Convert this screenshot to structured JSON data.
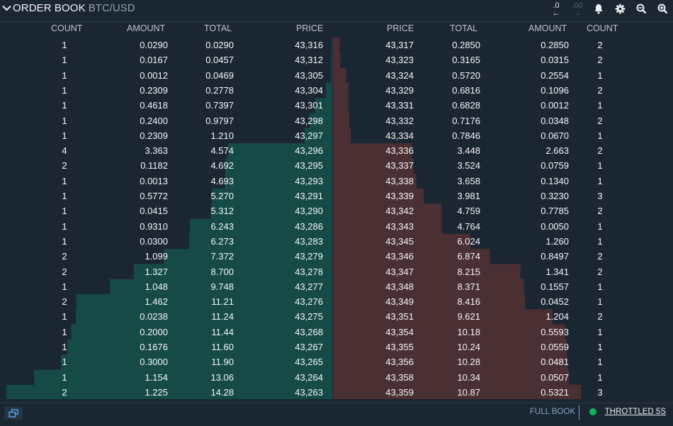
{
  "header": {
    "title": "ORDER BOOK",
    "pair": "BTC/USD",
    "prec_less_label": ".0",
    "prec_more_label": ".00",
    "prec_less_arrow": "←",
    "prec_more_arrow": "→"
  },
  "columns": {
    "bid_count": "COUNT",
    "bid_amount": "AMOUNT",
    "bid_total": "TOTAL",
    "bid_price": "PRICE",
    "ask_price": "PRICE",
    "ask_total": "TOTAL",
    "ask_amount": "AMOUNT",
    "ask_count": "COUNT"
  },
  "bids": [
    {
      "count": "1",
      "amount": "0.0290",
      "total": "0.0290",
      "price": "43,316"
    },
    {
      "count": "1",
      "amount": "0.0167",
      "total": "0.0457",
      "price": "43,312"
    },
    {
      "count": "1",
      "amount": "0.0012",
      "total": "0.0469",
      "price": "43,305"
    },
    {
      "count": "1",
      "amount": "0.2309",
      "total": "0.2778",
      "price": "43,304"
    },
    {
      "count": "1",
      "amount": "0.4618",
      "total": "0.7397",
      "price": "43,301"
    },
    {
      "count": "1",
      "amount": "0.2400",
      "total": "0.9797",
      "price": "43,298"
    },
    {
      "count": "1",
      "amount": "0.2309",
      "total": "1.210",
      "price": "43,297"
    },
    {
      "count": "4",
      "amount": "3.363",
      "total": "4.574",
      "price": "43,296"
    },
    {
      "count": "2",
      "amount": "0.1182",
      "total": "4.692",
      "price": "43,295"
    },
    {
      "count": "1",
      "amount": "0.0013",
      "total": "4.693",
      "price": "43,293"
    },
    {
      "count": "1",
      "amount": "0.5772",
      "total": "5.270",
      "price": "43,291"
    },
    {
      "count": "1",
      "amount": "0.0415",
      "total": "5.312",
      "price": "43,290"
    },
    {
      "count": "1",
      "amount": "0.9310",
      "total": "6.243",
      "price": "43,286"
    },
    {
      "count": "1",
      "amount": "0.0300",
      "total": "6.273",
      "price": "43,283"
    },
    {
      "count": "2",
      "amount": "1.099",
      "total": "7.372",
      "price": "43,279"
    },
    {
      "count": "2",
      "amount": "1.327",
      "total": "8.700",
      "price": "43,278"
    },
    {
      "count": "1",
      "amount": "1.048",
      "total": "9.748",
      "price": "43,277"
    },
    {
      "count": "2",
      "amount": "1.462",
      "total": "11.21",
      "price": "43,276"
    },
    {
      "count": "1",
      "amount": "0.0238",
      "total": "11.24",
      "price": "43,275"
    },
    {
      "count": "1",
      "amount": "0.2000",
      "total": "11.44",
      "price": "43,268"
    },
    {
      "count": "1",
      "amount": "0.1676",
      "total": "11.60",
      "price": "43,267"
    },
    {
      "count": "1",
      "amount": "0.3000",
      "total": "11.90",
      "price": "43,265"
    },
    {
      "count": "1",
      "amount": "1.154",
      "total": "13.06",
      "price": "43,264"
    },
    {
      "count": "2",
      "amount": "1.225",
      "total": "14.28",
      "price": "43,263"
    }
  ],
  "asks": [
    {
      "price": "43,317",
      "total": "0.2850",
      "amount": "0.2850",
      "count": "2"
    },
    {
      "price": "43,323",
      "total": "0.3165",
      "amount": "0.0315",
      "count": "2"
    },
    {
      "price": "43,324",
      "total": "0.5720",
      "amount": "0.2554",
      "count": "1"
    },
    {
      "price": "43,329",
      "total": "0.6816",
      "amount": "0.1096",
      "count": "2"
    },
    {
      "price": "43,331",
      "total": "0.6828",
      "amount": "0.0012",
      "count": "1"
    },
    {
      "price": "43,332",
      "total": "0.7176",
      "amount": "0.0348",
      "count": "2"
    },
    {
      "price": "43,334",
      "total": "0.7846",
      "amount": "0.0670",
      "count": "1"
    },
    {
      "price": "43,336",
      "total": "3.448",
      "amount": "2.663",
      "count": "2"
    },
    {
      "price": "43,337",
      "total": "3.524",
      "amount": "0.0759",
      "count": "1"
    },
    {
      "price": "43,338",
      "total": "3.658",
      "amount": "0.1340",
      "count": "1"
    },
    {
      "price": "43,339",
      "total": "3.981",
      "amount": "0.3230",
      "count": "3"
    },
    {
      "price": "43,342",
      "total": "4.759",
      "amount": "0.7785",
      "count": "2"
    },
    {
      "price": "43,343",
      "total": "4.764",
      "amount": "0.0050",
      "count": "1"
    },
    {
      "price": "43,345",
      "total": "6.024",
      "amount": "1.260",
      "count": "1"
    },
    {
      "price": "43,346",
      "total": "6.874",
      "amount": "0.8497",
      "count": "2"
    },
    {
      "price": "43,347",
      "total": "8.215",
      "amount": "1.341",
      "count": "2"
    },
    {
      "price": "43,348",
      "total": "8.371",
      "amount": "0.1557",
      "count": "1"
    },
    {
      "price": "43,349",
      "total": "8.416",
      "amount": "0.0452",
      "count": "1"
    },
    {
      "price": "43,351",
      "total": "9.621",
      "amount": "1.204",
      "count": "2"
    },
    {
      "price": "43,354",
      "total": "10.18",
      "amount": "0.5593",
      "count": "1"
    },
    {
      "price": "43,355",
      "total": "10.24",
      "amount": "0.0559",
      "count": "1"
    },
    {
      "price": "43,356",
      "total": "10.28",
      "amount": "0.0481",
      "count": "1"
    },
    {
      "price": "43,358",
      "total": "10.34",
      "amount": "0.0507",
      "count": "1"
    },
    {
      "price": "43,359",
      "total": "10.87",
      "amount": "0.5321",
      "count": "3"
    }
  ],
  "footer": {
    "full_book": "FULL BOOK",
    "throttled": "THROTTLED 5S"
  },
  "colors": {
    "background": "#1b2633",
    "bid_depth": "#164a47",
    "ask_depth": "#4a3033",
    "status_ok": "#16b157"
  },
  "icons": {
    "collapse": "chevron-down-icon",
    "alerts": "bell-icon",
    "settings": "gear-icon",
    "zoom_out": "zoom-out-icon",
    "zoom_in": "zoom-in-icon",
    "popout": "popout-icon"
  }
}
